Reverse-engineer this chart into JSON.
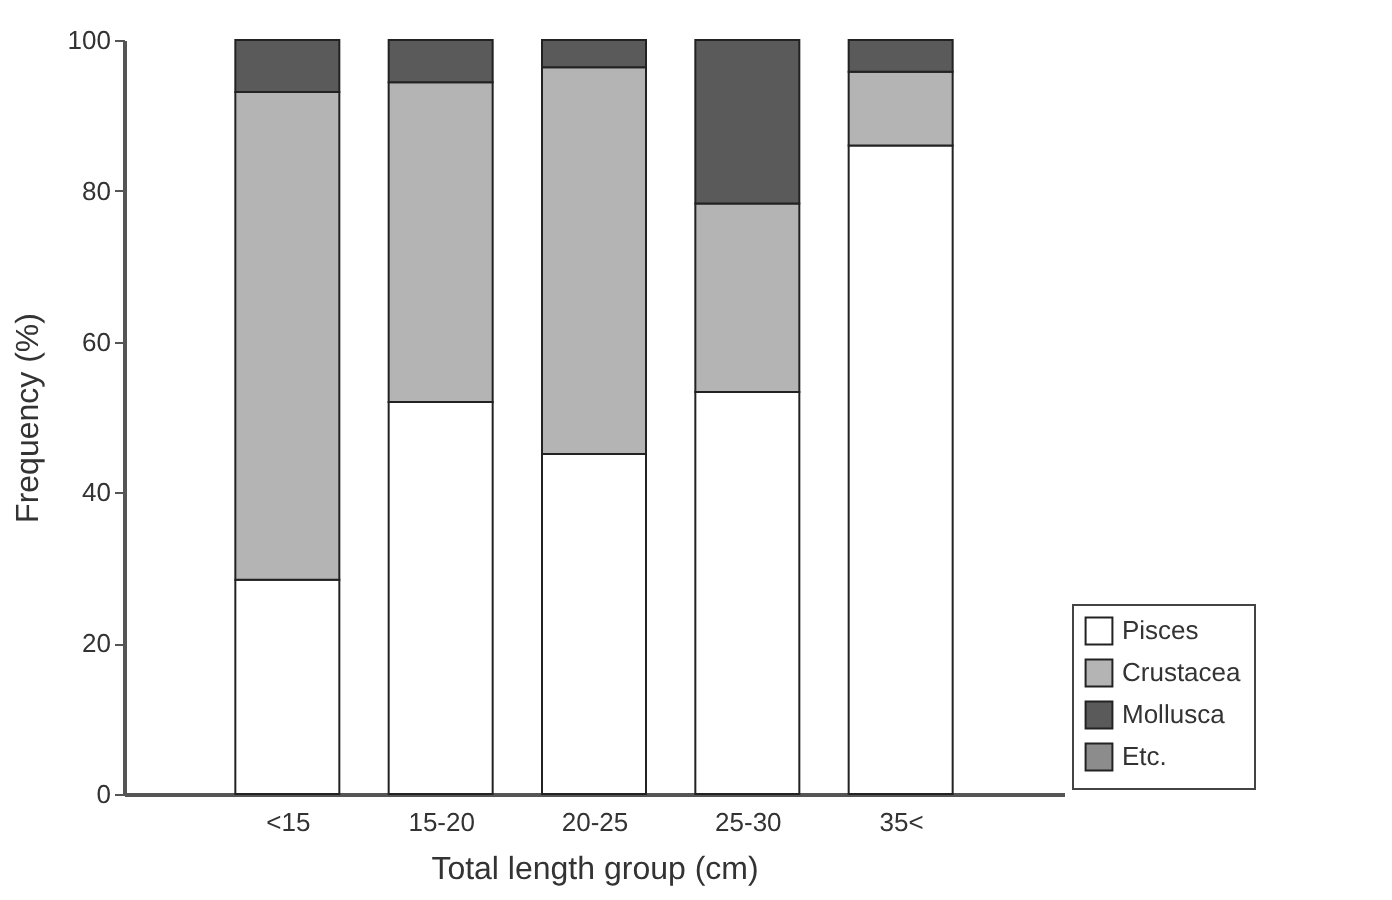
{
  "chart_data": {
    "type": "bar",
    "stacked": true,
    "xlabel": "Total length group (cm)",
    "ylabel": "Frequency (%)",
    "categories": [
      "<15",
      "15-20",
      "20-25",
      "25-30",
      "35<"
    ],
    "series": [
      {
        "name": "Pisces",
        "color": "#ffffff",
        "values": [
          28.4,
          52.0,
          45.1,
          53.3,
          86.0
        ]
      },
      {
        "name": "Crustacea",
        "color": "#b4b4b4",
        "values": [
          64.7,
          42.4,
          51.3,
          25.0,
          9.8
        ]
      },
      {
        "name": "Mollusca",
        "color": "#5a5a5a",
        "values": [
          6.9,
          5.6,
          3.6,
          21.7,
          4.2
        ]
      },
      {
        "name": "Etc.",
        "color": "#8c8c8c",
        "values": [
          0,
          0,
          0,
          0,
          0
        ]
      }
    ],
    "ylim": [
      0,
      100
    ],
    "yticks": [
      0,
      20,
      40,
      60,
      80,
      100
    ],
    "grid": false,
    "legend": "bottom right"
  }
}
